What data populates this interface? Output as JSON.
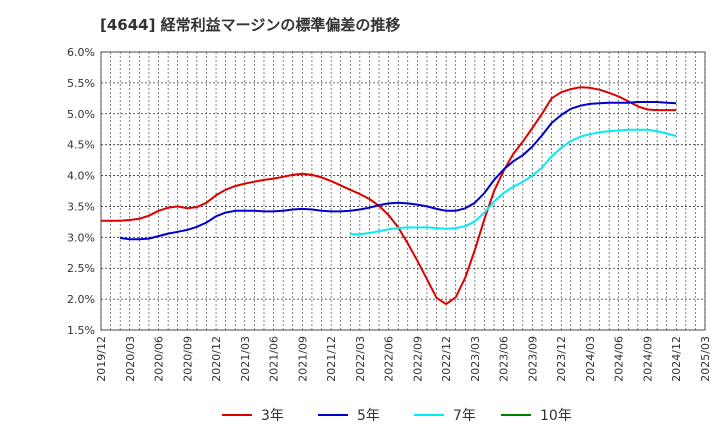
{
  "chart_data": {
    "type": "line",
    "title": "[4644]  経常利益マージンの標準偏差の推移",
    "ylim": [
      0.015,
      0.06
    ],
    "y_ticks": [
      "1.5%",
      "2.0%",
      "2.5%",
      "3.0%",
      "3.5%",
      "4.0%",
      "4.5%",
      "5.0%",
      "5.5%",
      "6.0%"
    ],
    "y_tick_values": [
      0.015,
      0.02,
      0.025,
      0.03,
      0.035,
      0.04,
      0.045,
      0.05,
      0.055,
      0.06
    ],
    "x_ticks": [
      "2019/12",
      "2020/03",
      "2020/06",
      "2020/09",
      "2020/12",
      "2021/03",
      "2021/06",
      "2021/09",
      "2021/12",
      "2022/03",
      "2022/06",
      "2022/09",
      "2022/12",
      "2023/03",
      "2023/06",
      "2023/09",
      "2023/12",
      "2024/03",
      "2024/06",
      "2024/09",
      "2024/12",
      "2025/03"
    ],
    "grid": true,
    "legend_position": "bottom",
    "series": [
      {
        "name": "3年",
        "color": "#dd0000",
        "x": [
          "2019/12",
          "2020/01",
          "2020/02",
          "2020/03",
          "2020/04",
          "2020/05",
          "2020/06",
          "2020/07",
          "2020/08",
          "2020/09",
          "2020/10",
          "2020/11",
          "2020/12",
          "2021/01",
          "2021/02",
          "2021/03",
          "2021/04",
          "2021/05",
          "2021/06",
          "2021/07",
          "2021/08",
          "2021/09",
          "2021/10",
          "2021/11",
          "2021/12",
          "2022/01",
          "2022/02",
          "2022/03",
          "2022/04",
          "2022/05",
          "2022/06",
          "2022/07",
          "2022/08",
          "2022/09",
          "2022/10",
          "2022/11",
          "2022/12",
          "2023/01",
          "2023/02",
          "2023/03",
          "2023/04",
          "2023/05",
          "2023/06",
          "2023/07",
          "2023/08",
          "2023/09",
          "2023/10",
          "2023/11",
          "2023/12",
          "2024/01",
          "2024/02",
          "2024/03",
          "2024/04",
          "2024/05",
          "2024/06",
          "2024/07",
          "2024/08",
          "2024/09",
          "2024/10",
          "2024/11",
          "2024/12"
        ],
        "values": [
          0.0327,
          0.0327,
          0.0327,
          0.0328,
          0.033,
          0.0335,
          0.0343,
          0.0348,
          0.035,
          0.0347,
          0.0349,
          0.0356,
          0.0368,
          0.0377,
          0.0383,
          0.0387,
          0.039,
          0.0393,
          0.0395,
          0.0398,
          0.0401,
          0.0403,
          0.0401,
          0.0397,
          0.0391,
          0.0384,
          0.0377,
          0.037,
          0.0362,
          0.0351,
          0.0336,
          0.0316,
          0.029,
          0.0262,
          0.0232,
          0.0202,
          0.0192,
          0.0203,
          0.0235,
          0.028,
          0.033,
          0.0375,
          0.0408,
          0.0435,
          0.0455,
          0.0477,
          0.05,
          0.0525,
          0.0535,
          0.054,
          0.0543,
          0.0542,
          0.0539,
          0.0534,
          0.0528,
          0.052,
          0.0512,
          0.0507,
          0.0506,
          0.0506,
          0.0506
        ]
      },
      {
        "name": "5年",
        "color": "#0000cc",
        "x": [
          "2020/02",
          "2020/03",
          "2020/04",
          "2020/05",
          "2020/06",
          "2020/07",
          "2020/08",
          "2020/09",
          "2020/10",
          "2020/11",
          "2020/12",
          "2021/01",
          "2021/02",
          "2021/03",
          "2021/04",
          "2021/05",
          "2021/06",
          "2021/07",
          "2021/08",
          "2021/09",
          "2021/10",
          "2021/11",
          "2021/12",
          "2022/01",
          "2022/02",
          "2022/03",
          "2022/04",
          "2022/05",
          "2022/06",
          "2022/07",
          "2022/08",
          "2022/09",
          "2022/10",
          "2022/11",
          "2022/12",
          "2023/01",
          "2023/02",
          "2023/03",
          "2023/04",
          "2023/05",
          "2023/06",
          "2023/07",
          "2023/08",
          "2023/09",
          "2023/10",
          "2023/11",
          "2023/12",
          "2024/01",
          "2024/02",
          "2024/03",
          "2024/04",
          "2024/05",
          "2024/06",
          "2024/07",
          "2024/08",
          "2024/09",
          "2024/10",
          "2024/11",
          "2024/12"
        ],
        "values": [
          0.0299,
          0.0297,
          0.0297,
          0.0298,
          0.0302,
          0.0306,
          0.0309,
          0.0312,
          0.0317,
          0.0324,
          0.0334,
          0.034,
          0.0343,
          0.0343,
          0.0343,
          0.0342,
          0.0342,
          0.0343,
          0.0345,
          0.0346,
          0.0345,
          0.0343,
          0.0342,
          0.0342,
          0.0343,
          0.0345,
          0.0348,
          0.0352,
          0.0355,
          0.0356,
          0.0355,
          0.0353,
          0.035,
          0.0346,
          0.0343,
          0.0343,
          0.0347,
          0.0356,
          0.0372,
          0.0393,
          0.041,
          0.0423,
          0.0433,
          0.0447,
          0.0465,
          0.0485,
          0.0498,
          0.0508,
          0.0513,
          0.0516,
          0.0517,
          0.0518,
          0.0518,
          0.0518,
          0.0519,
          0.0519,
          0.0519,
          0.0518,
          0.0517
        ]
      },
      {
        "name": "7年",
        "color": "#00eeee",
        "x": [
          "2022/02",
          "2022/03",
          "2022/04",
          "2022/05",
          "2022/06",
          "2022/07",
          "2022/08",
          "2022/09",
          "2022/10",
          "2022/11",
          "2022/12",
          "2023/01",
          "2023/02",
          "2023/03",
          "2023/04",
          "2023/05",
          "2023/06",
          "2023/07",
          "2023/08",
          "2023/09",
          "2023/10",
          "2023/11",
          "2023/12",
          "2024/01",
          "2024/02",
          "2024/03",
          "2024/04",
          "2024/05",
          "2024/06",
          "2024/07",
          "2024/08",
          "2024/09",
          "2024/10",
          "2024/11",
          "2024/12"
        ],
        "values": [
          0.0305,
          0.0305,
          0.0307,
          0.031,
          0.0313,
          0.0315,
          0.0316,
          0.0316,
          0.0316,
          0.0315,
          0.0314,
          0.0315,
          0.0318,
          0.0326,
          0.034,
          0.0358,
          0.0372,
          0.0382,
          0.039,
          0.04,
          0.0413,
          0.0431,
          0.0445,
          0.0456,
          0.0463,
          0.0467,
          0.047,
          0.0472,
          0.0473,
          0.0474,
          0.0474,
          0.0474,
          0.0472,
          0.0468,
          0.0464
        ]
      },
      {
        "name": "10年",
        "color": "#008000",
        "x": [],
        "values": []
      }
    ]
  }
}
